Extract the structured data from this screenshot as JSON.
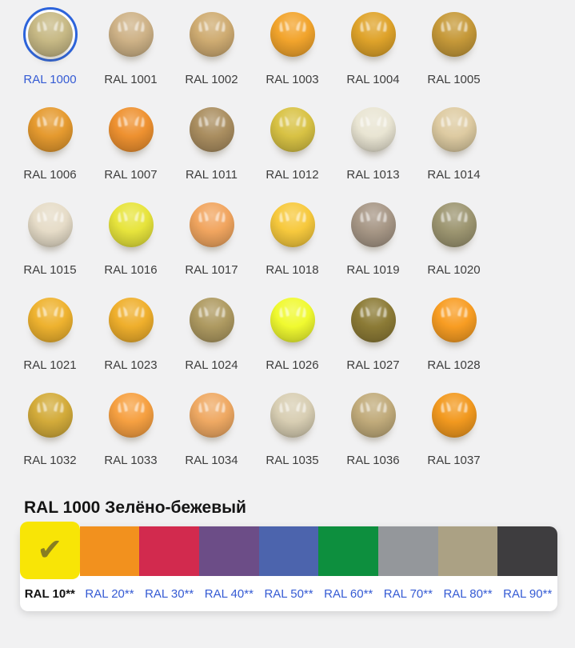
{
  "colors": {
    "page_background": "#f1f1f2",
    "ring": "#2d64db",
    "link": "#355bd4",
    "ball_label": "#3d3d3d",
    "heading_text": "#141414",
    "checkmark": "#887e22"
  },
  "palette_grid": {
    "items": [
      {
        "code": "RAL 1000",
        "color": "#C7B985",
        "selected": true
      },
      {
        "code": "RAL 1001",
        "color": "#CEB287"
      },
      {
        "code": "RAL 1002",
        "color": "#CFAC72"
      },
      {
        "code": "RAL 1003",
        "color": "#F2A42C"
      },
      {
        "code": "RAL 1004",
        "color": "#DFA32A"
      },
      {
        "code": "RAL 1005",
        "color": "#C69939"
      },
      {
        "code": "RAL 1006",
        "color": "#E59A2F"
      },
      {
        "code": "RAL 1007",
        "color": "#EE9130"
      },
      {
        "code": "RAL 1011",
        "color": "#AA8E60"
      },
      {
        "code": "RAL 1012",
        "color": "#D8C244"
      },
      {
        "code": "RAL 1013",
        "color": "#E9E5D3"
      },
      {
        "code": "RAL 1014",
        "color": "#DECBA2"
      },
      {
        "code": "RAL 1015",
        "color": "#E6DCC8"
      },
      {
        "code": "RAL 1016",
        "color": "#E7E43C"
      },
      {
        "code": "RAL 1017",
        "color": "#F1A55F"
      },
      {
        "code": "RAL 1018",
        "color": "#F7C93D"
      },
      {
        "code": "RAL 1019",
        "color": "#A79786"
      },
      {
        "code": "RAL 1020",
        "color": "#9D9671"
      },
      {
        "code": "RAL 1021",
        "color": "#EEB22F"
      },
      {
        "code": "RAL 1023",
        "color": "#EFAF2C"
      },
      {
        "code": "RAL 1024",
        "color": "#AE9A61"
      },
      {
        "code": "RAL 1026",
        "color": "#F0FA30"
      },
      {
        "code": "RAL 1027",
        "color": "#8C7B36"
      },
      {
        "code": "RAL 1028",
        "color": "#F89D23"
      },
      {
        "code": "RAL 1032",
        "color": "#D3AB3A"
      },
      {
        "code": "RAL 1033",
        "color": "#F6A041"
      },
      {
        "code": "RAL 1034",
        "color": "#EFA963"
      },
      {
        "code": "RAL 1035",
        "color": "#D8CEB3"
      },
      {
        "code": "RAL 1036",
        "color": "#C1AB7B"
      },
      {
        "code": "RAL 1037",
        "color": "#F2991F"
      }
    ]
  },
  "detail": {
    "heading": "RAL 1000 Зелёно-бежевый"
  },
  "category_tabs": {
    "checkmark_icon": "✔",
    "tabs": [
      {
        "label": "RAL 10**",
        "color": "#F8E506",
        "selected": true
      },
      {
        "label": "RAL 20**",
        "color": "#F2911E"
      },
      {
        "label": "RAL 30**",
        "color": "#D22A4E"
      },
      {
        "label": "RAL 40**",
        "color": "#6C4D87"
      },
      {
        "label": "RAL 50**",
        "color": "#4C64AD"
      },
      {
        "label": "RAL 60**",
        "color": "#0D8F3E"
      },
      {
        "label": "RAL 70**",
        "color": "#94979B"
      },
      {
        "label": "RAL 80**",
        "color": "#ABA184"
      },
      {
        "label": "RAL 90**",
        "color": "#3E3D3F"
      }
    ]
  }
}
